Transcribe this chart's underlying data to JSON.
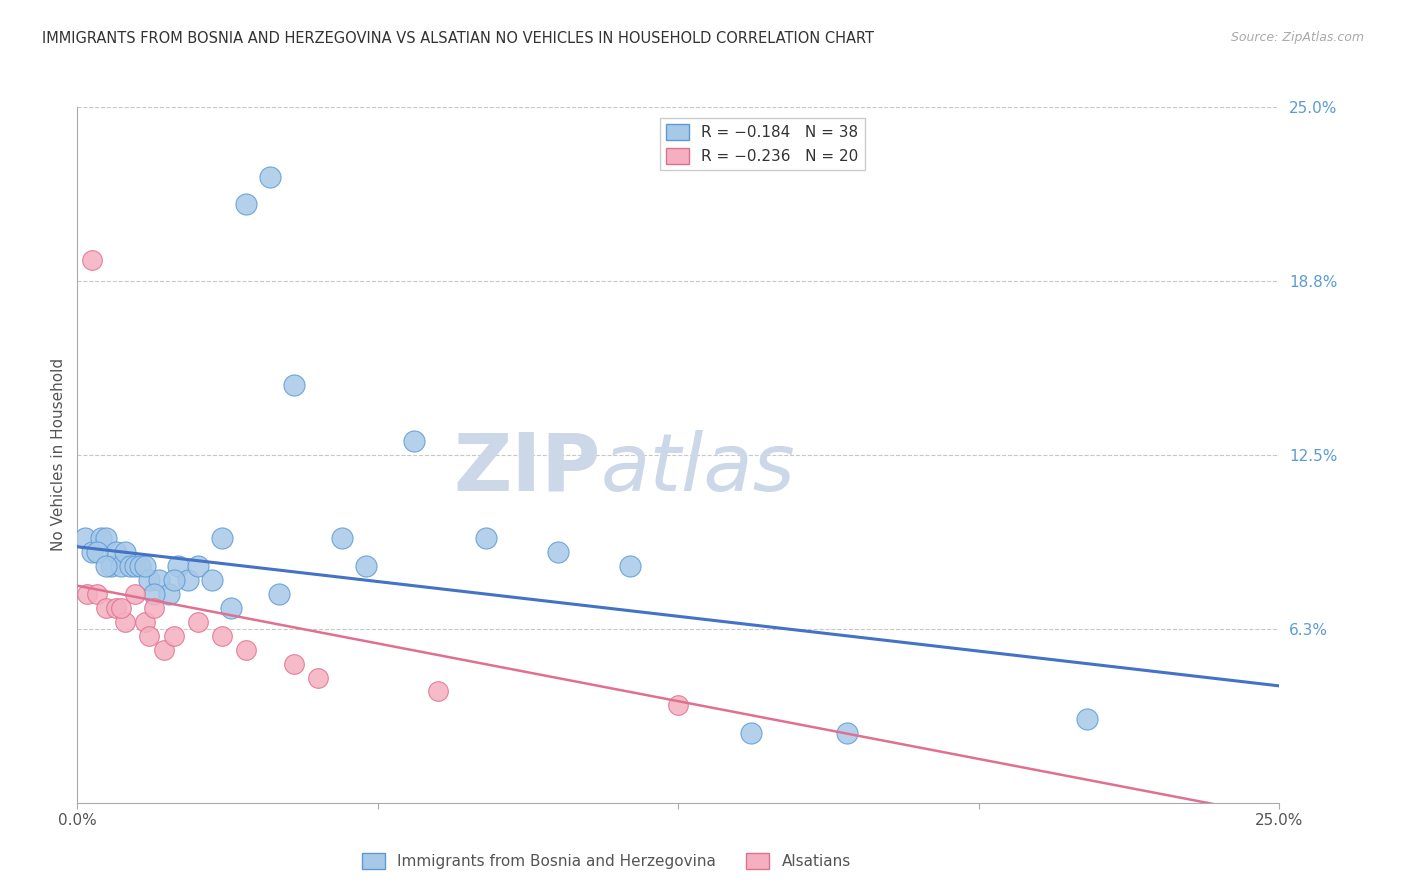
{
  "title": "IMMIGRANTS FROM BOSNIA AND HERZEGOVINA VS ALSATIAN NO VEHICLES IN HOUSEHOLD CORRELATION CHART",
  "source": "Source: ZipAtlas.com",
  "ylabel": "No Vehicles in Household",
  "xlim": [
    0.0,
    25.0
  ],
  "ylim": [
    0.0,
    25.0
  ],
  "y_ticks": [
    6.25,
    12.5,
    18.75,
    25.0
  ],
  "y_tick_labels": [
    "6.3%",
    "12.5%",
    "18.8%",
    "25.0%"
  ],
  "x_ticks": [
    0.0,
    6.25,
    12.5,
    18.75,
    25.0
  ],
  "x_tick_labels": [
    "0.0%",
    "",
    "",
    "",
    "25.0%"
  ],
  "grid_color": "#c8c8c8",
  "bg_color": "#ffffff",
  "blue_face": "#a8c8e8",
  "blue_edge": "#5b9bd5",
  "pink_face": "#f4b0c0",
  "pink_edge": "#e07090",
  "blue_line": "#4472c4",
  "pink_line": "#e07090",
  "right_axis_color": "#5b9bd5",
  "legend_blue": "R = −0.184   N = 38",
  "legend_pink": "R = −0.236   N = 20",
  "bottom_label_blue": "Immigrants from Bosnia and Herzegovina",
  "bottom_label_pink": "Alsatians",
  "watermark_zip": "ZIP",
  "watermark_atlas": "atlas",
  "watermark_color": "#ccd8e8",
  "blue_x": [
    0.15,
    0.3,
    0.5,
    0.6,
    0.7,
    0.8,
    0.9,
    1.0,
    1.1,
    1.2,
    1.3,
    1.5,
    1.7,
    1.9,
    2.1,
    2.3,
    2.5,
    3.0,
    3.5,
    4.0,
    4.5,
    5.5,
    6.0,
    7.0,
    8.5,
    10.0,
    11.5,
    14.0,
    16.0,
    21.0,
    0.4,
    0.6,
    1.4,
    1.6,
    2.0,
    2.8,
    3.2,
    4.2
  ],
  "blue_y": [
    9.5,
    9.0,
    9.5,
    9.5,
    8.5,
    9.0,
    8.5,
    9.0,
    8.5,
    8.5,
    8.5,
    8.0,
    8.0,
    7.5,
    8.5,
    8.0,
    8.5,
    9.5,
    21.5,
    22.5,
    15.0,
    9.5,
    8.5,
    13.0,
    9.5,
    9.0,
    8.5,
    2.5,
    2.5,
    3.0,
    9.0,
    8.5,
    8.5,
    7.5,
    8.0,
    8.0,
    7.0,
    7.5
  ],
  "pink_x": [
    0.2,
    0.4,
    0.6,
    0.8,
    1.0,
    1.2,
    1.4,
    1.6,
    1.8,
    2.0,
    2.5,
    3.0,
    3.5,
    4.5,
    5.0,
    7.5,
    12.5,
    0.3,
    0.9,
    1.5
  ],
  "pink_y": [
    7.5,
    7.5,
    7.0,
    7.0,
    6.5,
    7.5,
    6.5,
    7.0,
    5.5,
    6.0,
    6.5,
    6.0,
    5.5,
    5.0,
    4.5,
    4.0,
    3.5,
    19.5,
    7.0,
    6.0
  ],
  "blue_trend_x": [
    0,
    25
  ],
  "blue_trend_y": [
    9.2,
    4.2
  ],
  "pink_trend_x": [
    0,
    25
  ],
  "pink_trend_y": [
    7.8,
    -0.5
  ]
}
